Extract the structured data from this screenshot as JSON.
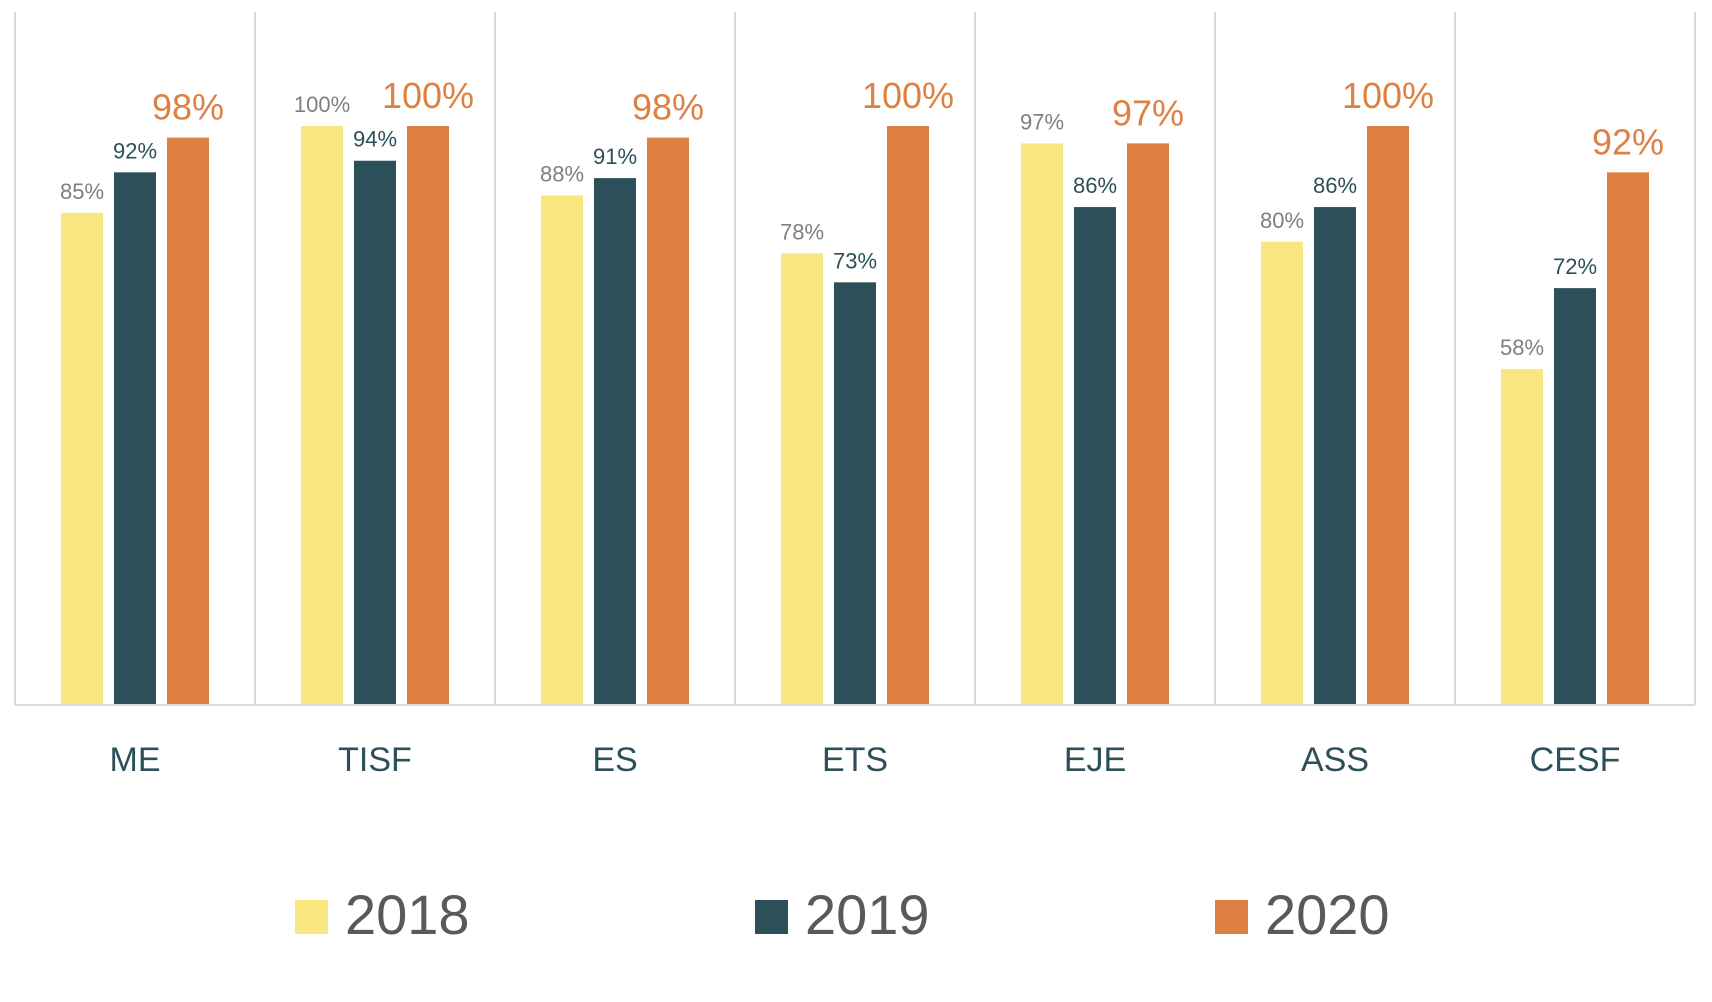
{
  "chart_data": {
    "type": "bar",
    "title": "",
    "xlabel": "",
    "ylabel": "",
    "ylim": [
      0,
      100
    ],
    "grid": "vertical category separators",
    "legend_position": "bottom",
    "categories": [
      "ME",
      "TISF",
      "ES",
      "ETS",
      "EJE",
      "ASS",
      "CESF"
    ],
    "series": [
      {
        "name": "2018",
        "color": "#f9e67f",
        "label_color": "#7f7f7f",
        "values": [
          85,
          100,
          88,
          78,
          97,
          80,
          58
        ],
        "labels": [
          "85%",
          "100%",
          "88%",
          "78%",
          "97%",
          "80%",
          "58%"
        ]
      },
      {
        "name": "2019",
        "color": "#2c505a",
        "label_color": "#2c505a",
        "values": [
          92,
          94,
          91,
          73,
          86,
          86,
          72
        ],
        "labels": [
          "92%",
          "94%",
          "91%",
          "73%",
          "86%",
          "86%",
          "72%"
        ]
      },
      {
        "name": "2020",
        "color": "#df8043",
        "label_color": "#df8043",
        "values": [
          98,
          100,
          98,
          100,
          97,
          100,
          92
        ],
        "labels": [
          "98%",
          "100%",
          "98%",
          "100%",
          "97%",
          "100%",
          "92%"
        ]
      }
    ]
  }
}
